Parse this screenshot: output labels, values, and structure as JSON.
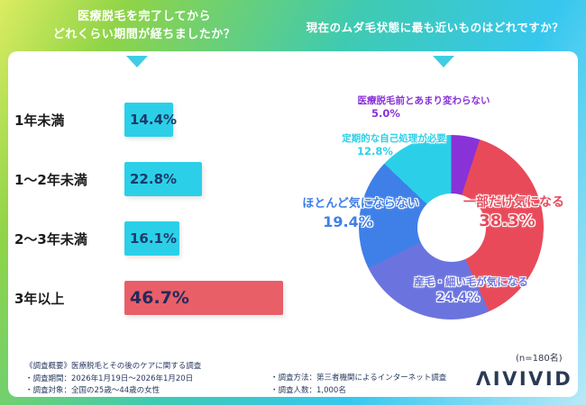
{
  "header": {
    "left_title": [
      "医療脱毛を完了してから",
      "どれくらい期間が経ちましたか？"
    ],
    "right_title": "現在のムダ毛状態に最も近いものはどれですか？"
  },
  "palette": {
    "bar_cyan": "#2bd0e8",
    "bar_red": "#e85f68",
    "bar_value_text": "#1d3a6b",
    "header_text": "#ffffff",
    "arrow_cyan": "#3fcde4",
    "footer_text": "#27395f"
  },
  "chart_data": [
    {
      "type": "bar",
      "orientation": "horizontal",
      "title": "医療脱毛を完了してからどれくらい期間が経ちましたか？",
      "categories": [
        "1年未満",
        "1〜2年未満",
        "2〜3年未満",
        "3年以上"
      ],
      "values": [
        14.4,
        22.8,
        16.1,
        46.7
      ],
      "value_labels": [
        "14.4%",
        "22.8%",
        "16.1%",
        "46.7%"
      ],
      "bar_colors": [
        "#2bd0e8",
        "#2bd0e8",
        "#2bd0e8",
        "#e85f68"
      ],
      "xlim": [
        0,
        50
      ],
      "grid": false
    },
    {
      "type": "pie",
      "donut": true,
      "title": "現在のムダ毛状態に最も近いものはどれですか？",
      "labels": [
        "医療脱毛前とあまり変わらない",
        "一部だけ気になる",
        "産毛・細い毛が気になる",
        "ほとんど気にならない",
        "定期的な自己処理が必要"
      ],
      "draw_order_labels": [
        "医療脱毛前とあまり変わらない",
        "一部だけ気になる",
        "産毛・細い毛が気になる",
        "ほとんど気にならない",
        "定期的な自己処理が必要"
      ],
      "values": [
        5.0,
        38.3,
        24.4,
        19.4,
        12.8
      ],
      "value_labels": [
        "5.0%",
        "38.3%",
        "24.4%",
        "19.4%",
        "12.8%"
      ],
      "colors": [
        "#8832d8",
        "#e84a5a",
        "#6b74de",
        "#3f7fe8",
        "#2bd0e8"
      ],
      "sample_label": "(n=180名)"
    }
  ],
  "footer": {
    "survey_overview": "《調査概要》医療脱毛とその後のケアに関する調査",
    "survey_period": "・調査期間：2026年1月19日〜2026年1月20日",
    "survey_target": "・調査対象：全国の25歳〜44歳の女性",
    "survey_method": "・調査方法：第三者機関によるインターネット調査",
    "survey_count": "・調査人数：1,000名",
    "logo": "ΛIVIVID"
  }
}
